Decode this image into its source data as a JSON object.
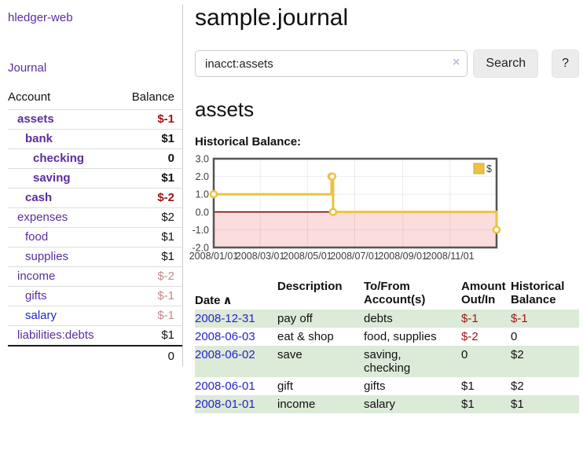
{
  "app": {
    "name": "hledger-web"
  },
  "sidebar": {
    "nav_journal": "Journal",
    "headers": {
      "account": "Account",
      "balance": "Balance"
    },
    "accounts": [
      {
        "name": "assets",
        "balance": "$-1",
        "indent": 0,
        "bold": true
      },
      {
        "name": "bank",
        "balance": "$1",
        "indent": 1,
        "bold": true
      },
      {
        "name": "checking",
        "balance": "0",
        "indent": 2,
        "bold": true
      },
      {
        "name": "saving",
        "balance": "$1",
        "indent": 2,
        "bold": true
      },
      {
        "name": "cash",
        "balance": "$-2",
        "indent": 1,
        "bold": true
      },
      {
        "name": "expenses",
        "balance": "$2",
        "indent": 0,
        "bold": false
      },
      {
        "name": "food",
        "balance": "$1",
        "indent": 1,
        "bold": false
      },
      {
        "name": "supplies",
        "balance": "$1",
        "indent": 1,
        "bold": false
      },
      {
        "name": "income",
        "balance": "$-2",
        "indent": 0,
        "bold": false
      },
      {
        "name": "gifts",
        "balance": "$-1",
        "indent": 1,
        "bold": false
      },
      {
        "name": "salary",
        "balance": "$-1",
        "indent": 1,
        "bold": false,
        "link": "blue"
      },
      {
        "name": "liabilities:debts",
        "balance": "$1",
        "indent": 0,
        "bold": false
      }
    ],
    "total": "0"
  },
  "header": {
    "title": "sample.journal"
  },
  "search": {
    "value": "inacct:assets",
    "clear_icon": "×",
    "button_label": "Search",
    "help_label": "?"
  },
  "account_page": {
    "heading": "assets"
  },
  "chart_data": {
    "type": "line",
    "step": true,
    "title": "Historical Balance:",
    "series": [
      {
        "name": "$",
        "color": "#EDC240",
        "points": [
          [
            "2008-01-01",
            1
          ],
          [
            "2008-06-01",
            2
          ],
          [
            "2008-06-02",
            2
          ],
          [
            "2008-06-03",
            0
          ],
          [
            "2008-12-31",
            -1
          ]
        ]
      }
    ],
    "x_ticks": [
      "2008/01/01",
      "2008/03/01",
      "2008/05/01",
      "2008/07/01",
      "2008/09/01",
      "2008/11/01"
    ],
    "y_ticks": [
      3.0,
      2.0,
      1.0,
      0.0,
      -1.0,
      -2.0
    ],
    "ylim": [
      -2,
      3
    ],
    "xlim": [
      "2008-01-01",
      "2008-12-31"
    ],
    "legend": {
      "label": "$",
      "position": "top-right"
    },
    "grid": true,
    "negative_region_fill": "#FCDDDD",
    "zero_line_color": "#7A0000",
    "plot_border_color": "#545454"
  },
  "register": {
    "headers": {
      "date": "Date",
      "sort_icon": "∧",
      "description": "Description",
      "accounts": "To/From\nAccount(s)",
      "amount": "Amount\nOut/In",
      "balance": "Historical\nBalance"
    },
    "rows": [
      {
        "date": "2008-12-31",
        "description": "pay off",
        "accounts": "debts",
        "amount": "$-1",
        "balance": "$-1"
      },
      {
        "date": "2008-06-03",
        "description": "eat & shop",
        "accounts": "food, supplies",
        "amount": "$-2",
        "balance": "0"
      },
      {
        "date": "2008-06-02",
        "description": "save",
        "accounts": "saving, checking",
        "amount": "0",
        "balance": "$2"
      },
      {
        "date": "2008-06-01",
        "description": "gift",
        "accounts": "gifts",
        "amount": "$1",
        "balance": "$2"
      },
      {
        "date": "2008-01-01",
        "description": "income",
        "accounts": "salary",
        "amount": "$1",
        "balance": "$1"
      }
    ]
  },
  "colors": {
    "link_purple": "#5A2D9E",
    "link_blue": "#2424CC",
    "negative_strong": "#A01616",
    "negative_muted": "#C58989",
    "row_green": "#DCEAD8",
    "series_gold": "#EDC240",
    "negative_region_pink": "#FCDDDD"
  }
}
